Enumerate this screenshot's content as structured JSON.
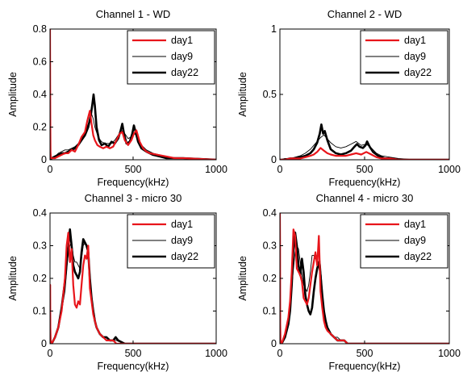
{
  "figure": {
    "legend_placement": "top-right",
    "series_styles": [
      {
        "name": "day1",
        "color": "#e8151b",
        "width": 2.2
      },
      {
        "name": "day9",
        "color": "#000000",
        "width": 0.9
      },
      {
        "name": "day22",
        "color": "#000000",
        "width": 2.6
      }
    ]
  },
  "chart_data": [
    {
      "type": "line",
      "title": "Channel 1 - WD",
      "xlabel": "Frequency(kHz)",
      "ylabel": "Amplitude",
      "xlim": [
        0,
        1000
      ],
      "ylim": [
        0,
        0.8
      ],
      "xticks": [
        "0",
        "500",
        "1000"
      ],
      "yticks": [
        {
          "v": 0,
          "l": "0"
        },
        {
          "v": 0.2,
          "l": "0.2"
        },
        {
          "v": 0.4,
          "l": "0.4"
        },
        {
          "v": 0.6,
          "l": "0.6"
        },
        {
          "v": 0.8,
          "l": "0.8"
        }
      ],
      "legend": [
        "day1",
        "day9",
        "day22"
      ],
      "series": [
        {
          "name": "day1",
          "x": [
            0,
            1,
            2,
            3,
            5,
            10,
            30,
            50,
            70,
            90,
            110,
            130,
            150,
            170,
            190,
            210,
            225,
            240,
            250,
            260,
            270,
            285,
            300,
            320,
            340,
            360,
            380,
            400,
            420,
            435,
            450,
            470,
            490,
            505,
            520,
            540,
            560,
            580,
            600,
            650,
            700,
            750,
            800,
            900,
            1000
          ],
          "values": [
            0.8,
            0.46,
            0.2,
            0.05,
            0.01,
            0.01,
            0.01,
            0.02,
            0.03,
            0.04,
            0.04,
            0.06,
            0.05,
            0.09,
            0.14,
            0.17,
            0.24,
            0.3,
            0.22,
            0.15,
            0.12,
            0.09,
            0.08,
            0.07,
            0.08,
            0.07,
            0.08,
            0.12,
            0.16,
            0.17,
            0.12,
            0.09,
            0.12,
            0.16,
            0.18,
            0.11,
            0.07,
            0.05,
            0.04,
            0.03,
            0.02,
            0.01,
            0.01,
            0.005,
            0.0
          ]
        },
        {
          "name": "day9",
          "x": [
            0,
            10,
            30,
            50,
            70,
            90,
            110,
            130,
            150,
            170,
            190,
            210,
            230,
            250,
            260,
            270,
            290,
            310,
            330,
            350,
            370,
            390,
            410,
            430,
            450,
            470,
            490,
            510,
            530,
            550,
            580,
            620,
            660,
            700,
            750,
            800,
            900,
            1000
          ],
          "values": [
            0.0,
            0.01,
            0.02,
            0.04,
            0.05,
            0.06,
            0.06,
            0.07,
            0.08,
            0.1,
            0.13,
            0.17,
            0.22,
            0.28,
            0.25,
            0.2,
            0.14,
            0.11,
            0.1,
            0.1,
            0.1,
            0.12,
            0.15,
            0.18,
            0.16,
            0.13,
            0.14,
            0.16,
            0.13,
            0.09,
            0.06,
            0.04,
            0.03,
            0.02,
            0.01,
            0.01,
            0.005,
            0.0
          ]
        },
        {
          "name": "day22",
          "x": [
            0,
            10,
            30,
            50,
            70,
            90,
            110,
            130,
            150,
            170,
            190,
            210,
            230,
            245,
            255,
            262,
            270,
            280,
            295,
            310,
            330,
            350,
            370,
            390,
            410,
            425,
            435,
            445,
            460,
            480,
            495,
            505,
            515,
            530,
            550,
            580,
            620,
            660,
            700,
            750,
            800,
            900,
            1000
          ],
          "values": [
            0.0,
            0.01,
            0.02,
            0.03,
            0.04,
            0.04,
            0.05,
            0.06,
            0.07,
            0.09,
            0.12,
            0.15,
            0.2,
            0.27,
            0.34,
            0.4,
            0.33,
            0.2,
            0.12,
            0.09,
            0.1,
            0.08,
            0.11,
            0.1,
            0.13,
            0.18,
            0.22,
            0.16,
            0.1,
            0.11,
            0.16,
            0.21,
            0.17,
            0.11,
            0.07,
            0.05,
            0.03,
            0.02,
            0.01,
            0.01,
            0.01,
            0.005,
            0.0
          ]
        }
      ]
    },
    {
      "type": "line",
      "title": "Channel 2 - WD",
      "xlabel": "Frequency(kHz)",
      "ylabel": "Amplitude",
      "xlim": [
        0,
        1000
      ],
      "ylim": [
        0,
        1
      ],
      "xticks": [
        "0",
        "500",
        "1000"
      ],
      "yticks": [
        {
          "v": 0,
          "l": "0"
        },
        {
          "v": 0.5,
          "l": "0.5"
        },
        {
          "v": 1,
          "l": "1"
        }
      ],
      "legend": [
        "day1",
        "day9",
        "day22"
      ],
      "series": [
        {
          "name": "day1",
          "x": [
            0,
            30,
            60,
            90,
            120,
            150,
            180,
            200,
            220,
            240,
            260,
            280,
            300,
            330,
            360,
            390,
            420,
            450,
            480,
            510,
            540,
            570,
            600,
            650,
            700,
            800,
            900,
            1000
          ],
          "values": [
            0.0,
            0.0,
            0.01,
            0.01,
            0.01,
            0.02,
            0.03,
            0.04,
            0.06,
            0.09,
            0.07,
            0.05,
            0.04,
            0.03,
            0.03,
            0.03,
            0.04,
            0.05,
            0.04,
            0.06,
            0.04,
            0.02,
            0.01,
            0.01,
            0.0,
            0.0,
            0.0,
            0.0
          ]
        },
        {
          "name": "day9",
          "x": [
            0,
            30,
            60,
            90,
            120,
            150,
            180,
            200,
            220,
            240,
            260,
            280,
            300,
            330,
            360,
            390,
            420,
            450,
            480,
            510,
            540,
            570,
            600,
            650,
            700,
            800,
            900,
            1000
          ],
          "values": [
            0.0,
            0.01,
            0.01,
            0.02,
            0.03,
            0.05,
            0.08,
            0.11,
            0.14,
            0.17,
            0.19,
            0.16,
            0.13,
            0.1,
            0.09,
            0.1,
            0.12,
            0.14,
            0.11,
            0.12,
            0.09,
            0.05,
            0.03,
            0.02,
            0.01,
            0.0,
            0.0,
            0.0
          ]
        },
        {
          "name": "day22",
          "x": [
            0,
            30,
            60,
            90,
            120,
            150,
            180,
            200,
            220,
            235,
            245,
            255,
            265,
            280,
            300,
            330,
            360,
            390,
            420,
            440,
            455,
            470,
            490,
            505,
            515,
            530,
            550,
            580,
            620,
            650,
            700,
            800,
            900,
            1000
          ],
          "values": [
            0.0,
            0.0,
            0.01,
            0.01,
            0.02,
            0.03,
            0.05,
            0.08,
            0.13,
            0.2,
            0.27,
            0.2,
            0.22,
            0.15,
            0.08,
            0.05,
            0.04,
            0.05,
            0.07,
            0.1,
            0.12,
            0.1,
            0.09,
            0.11,
            0.14,
            0.1,
            0.06,
            0.03,
            0.01,
            0.01,
            0.0,
            0.0,
            0.0,
            0.0
          ]
        }
      ]
    },
    {
      "type": "line",
      "title": "Channel 3 - micro 30",
      "xlabel": "Frequency(kHz)",
      "ylabel": "Amplitude",
      "xlim": [
        0,
        1000
      ],
      "ylim": [
        0,
        0.4
      ],
      "xticks": [
        "0",
        "500",
        "1000"
      ],
      "yticks": [
        {
          "v": 0,
          "l": "0"
        },
        {
          "v": 0.1,
          "l": "0.1"
        },
        {
          "v": 0.2,
          "l": "0.2"
        },
        {
          "v": 0.3,
          "l": "0.3"
        },
        {
          "v": 0.4,
          "l": "0.4"
        }
      ],
      "legend": [
        "day1",
        "day9",
        "day22"
      ],
      "series": [
        {
          "name": "day1",
          "x": [
            0,
            1,
            2,
            4,
            10,
            30,
            50,
            70,
            90,
            100,
            110,
            120,
            130,
            140,
            150,
            160,
            170,
            180,
            190,
            200,
            210,
            220,
            230,
            240,
            250,
            260,
            270,
            280,
            300,
            320,
            340,
            360,
            380,
            400,
            450,
            500,
            600,
            700,
            800,
            1000
          ],
          "values": [
            0.14,
            0.18,
            0.05,
            0.01,
            0.0,
            0.02,
            0.05,
            0.1,
            0.2,
            0.3,
            0.34,
            0.25,
            0.29,
            0.18,
            0.12,
            0.11,
            0.13,
            0.12,
            0.18,
            0.24,
            0.27,
            0.26,
            0.3,
            0.17,
            0.13,
            0.09,
            0.07,
            0.05,
            0.03,
            0.02,
            0.01,
            0.01,
            0.01,
            0.0,
            0.0,
            0.0,
            0.0,
            0.0,
            0.0,
            0.0
          ]
        },
        {
          "name": "day9",
          "x": [
            0,
            10,
            30,
            50,
            70,
            90,
            100,
            110,
            120,
            130,
            140,
            150,
            160,
            170,
            180,
            190,
            200,
            210,
            220,
            230,
            240,
            250,
            260,
            270,
            280,
            300,
            320,
            340,
            360,
            380,
            400,
            450,
            500,
            600,
            800,
            1000
          ],
          "values": [
            0.0,
            0.0,
            0.02,
            0.05,
            0.1,
            0.16,
            0.22,
            0.28,
            0.3,
            0.31,
            0.27,
            0.25,
            0.25,
            0.24,
            0.23,
            0.26,
            0.3,
            0.31,
            0.3,
            0.29,
            0.22,
            0.15,
            0.11,
            0.08,
            0.05,
            0.03,
            0.02,
            0.02,
            0.01,
            0.01,
            0.01,
            0.0,
            0.0,
            0.0,
            0.0,
            0.0
          ]
        },
        {
          "name": "day22",
          "x": [
            0,
            10,
            30,
            50,
            70,
            90,
            100,
            110,
            120,
            130,
            140,
            150,
            160,
            170,
            180,
            190,
            200,
            210,
            220,
            230,
            240,
            250,
            260,
            270,
            280,
            300,
            320,
            340,
            360,
            380,
            395,
            410,
            450,
            500,
            600,
            800,
            1000
          ],
          "values": [
            0.0,
            0.0,
            0.02,
            0.05,
            0.11,
            0.19,
            0.25,
            0.29,
            0.35,
            0.3,
            0.24,
            0.22,
            0.21,
            0.2,
            0.22,
            0.28,
            0.32,
            0.31,
            0.3,
            0.28,
            0.2,
            0.14,
            0.1,
            0.07,
            0.05,
            0.03,
            0.02,
            0.02,
            0.01,
            0.01,
            0.02,
            0.01,
            0.0,
            0.0,
            0.0,
            0.0,
            0.0
          ]
        }
      ]
    },
    {
      "type": "line",
      "title": "Channel 4 - micro 30",
      "xlabel": "Frequency(kHz)",
      "ylabel": "Amplitude",
      "xlim": [
        0,
        1000
      ],
      "ylim": [
        0,
        0.4
      ],
      "xticks": [
        "0",
        "500",
        "1000"
      ],
      "yticks": [
        {
          "v": 0,
          "l": "0"
        },
        {
          "v": 0.1,
          "l": "0.1"
        },
        {
          "v": 0.2,
          "l": "0.2"
        },
        {
          "v": 0.3,
          "l": "0.3"
        },
        {
          "v": 0.4,
          "l": "0.4"
        }
      ],
      "legend": [
        "day1",
        "day9",
        "day22"
      ],
      "series": [
        {
          "name": "day1",
          "x": [
            0,
            1,
            2,
            4,
            10,
            30,
            50,
            60,
            70,
            80,
            90,
            100,
            110,
            120,
            130,
            140,
            150,
            160,
            170,
            180,
            190,
            200,
            210,
            220,
            230,
            240,
            250,
            260,
            270,
            280,
            300,
            320,
            340,
            360,
            380,
            400,
            450,
            500,
            600,
            800,
            1000
          ],
          "values": [
            0.4,
            0.3,
            0.06,
            0.01,
            0.0,
            0.03,
            0.08,
            0.13,
            0.22,
            0.35,
            0.33,
            0.23,
            0.22,
            0.21,
            0.19,
            0.14,
            0.13,
            0.12,
            0.14,
            0.18,
            0.22,
            0.25,
            0.28,
            0.24,
            0.33,
            0.16,
            0.11,
            0.07,
            0.05,
            0.04,
            0.03,
            0.02,
            0.01,
            0.01,
            0.01,
            0.0,
            0.0,
            0.0,
            0.0,
            0.0,
            0.0
          ]
        },
        {
          "name": "day9",
          "x": [
            0,
            10,
            30,
            50,
            60,
            70,
            80,
            90,
            100,
            110,
            120,
            130,
            140,
            150,
            160,
            170,
            180,
            190,
            200,
            210,
            220,
            230,
            240,
            250,
            260,
            270,
            280,
            300,
            320,
            340,
            360,
            380,
            400,
            450,
            500,
            600,
            800,
            1000
          ],
          "values": [
            0.0,
            0.0,
            0.03,
            0.07,
            0.11,
            0.17,
            0.23,
            0.28,
            0.3,
            0.29,
            0.25,
            0.21,
            0.18,
            0.17,
            0.16,
            0.18,
            0.22,
            0.27,
            0.27,
            0.26,
            0.27,
            0.28,
            0.24,
            0.16,
            0.11,
            0.07,
            0.05,
            0.03,
            0.02,
            0.02,
            0.01,
            0.01,
            0.0,
            0.0,
            0.0,
            0.0,
            0.0,
            0.0
          ]
        },
        {
          "name": "day22",
          "x": [
            0,
            10,
            30,
            50,
            60,
            70,
            80,
            90,
            100,
            110,
            120,
            130,
            140,
            150,
            160,
            170,
            180,
            190,
            200,
            210,
            220,
            230,
            240,
            250,
            260,
            270,
            280,
            300,
            320,
            340,
            360,
            380,
            400,
            450,
            500,
            600,
            800,
            1000
          ],
          "values": [
            0.0,
            0.0,
            0.02,
            0.06,
            0.1,
            0.18,
            0.29,
            0.34,
            0.3,
            0.24,
            0.21,
            0.26,
            0.22,
            0.15,
            0.12,
            0.1,
            0.09,
            0.11,
            0.16,
            0.2,
            0.23,
            0.25,
            0.21,
            0.15,
            0.1,
            0.07,
            0.05,
            0.03,
            0.02,
            0.01,
            0.01,
            0.01,
            0.0,
            0.0,
            0.0,
            0.0,
            0.0,
            0.0
          ]
        }
      ]
    }
  ]
}
